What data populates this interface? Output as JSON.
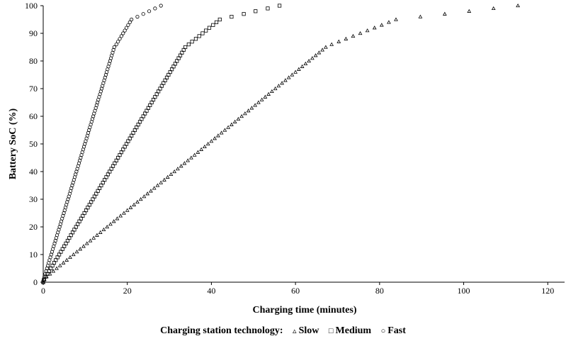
{
  "chart_data": {
    "type": "scatter",
    "xlabel": "Charging time (minutes)",
    "ylabel": "Battery SoC (%)",
    "xlim": [
      0,
      124
    ],
    "ylim": [
      0,
      100
    ],
    "xticks": [
      "0",
      "20",
      "40",
      "60",
      "80",
      "100",
      "120"
    ],
    "yticks": [
      "0",
      "10",
      "20",
      "30",
      "40",
      "50",
      "60",
      "70",
      "80",
      "90",
      "100"
    ],
    "legend": {
      "title": "Charging station technology:",
      "placement": "bottom-center",
      "entries": [
        {
          "name": "Slow",
          "marker": "triangle",
          "symbol": "▵"
        },
        {
          "name": "Medium",
          "marker": "square",
          "symbol": "□"
        },
        {
          "name": "Fast",
          "marker": "circle",
          "symbol": "○"
        }
      ]
    },
    "series": [
      {
        "name": "Slow",
        "marker": "triangle",
        "points": [
          [
            0,
            0
          ],
          [
            0.3,
            1
          ],
          [
            0.8,
            2
          ],
          [
            1.6,
            3
          ],
          [
            2.4,
            4
          ],
          [
            3.2,
            5
          ],
          [
            4,
            6
          ],
          [
            4.8,
            7
          ],
          [
            5.6,
            8
          ],
          [
            6.4,
            9
          ],
          [
            7.2,
            10
          ],
          [
            8,
            11
          ],
          [
            8.8,
            12
          ],
          [
            9.6,
            13
          ],
          [
            10.4,
            14
          ],
          [
            11.2,
            15
          ],
          [
            12,
            16
          ],
          [
            12.8,
            17
          ],
          [
            13.6,
            18
          ],
          [
            14.4,
            19
          ],
          [
            15.2,
            20
          ],
          [
            16,
            21
          ],
          [
            16.8,
            22
          ],
          [
            17.6,
            23
          ],
          [
            18.4,
            24
          ],
          [
            19.2,
            25
          ],
          [
            20,
            26
          ],
          [
            20.8,
            27
          ],
          [
            21.6,
            28
          ],
          [
            22.4,
            29
          ],
          [
            23.2,
            30
          ],
          [
            24,
            31
          ],
          [
            24.8,
            32
          ],
          [
            25.6,
            33
          ],
          [
            26.4,
            34
          ],
          [
            27.2,
            35
          ],
          [
            28,
            36
          ],
          [
            28.8,
            37
          ],
          [
            29.6,
            38
          ],
          [
            30.4,
            39
          ],
          [
            31.2,
            40
          ],
          [
            32,
            41
          ],
          [
            32.8,
            42
          ],
          [
            33.6,
            43
          ],
          [
            34.4,
            44
          ],
          [
            35.2,
            45
          ],
          [
            36,
            46
          ],
          [
            36.8,
            47
          ],
          [
            37.6,
            48
          ],
          [
            38.4,
            49
          ],
          [
            39.2,
            50
          ],
          [
            40,
            51
          ],
          [
            40.8,
            52
          ],
          [
            41.6,
            53
          ],
          [
            42.4,
            54
          ],
          [
            43.2,
            55
          ],
          [
            44,
            56
          ],
          [
            44.8,
            57
          ],
          [
            45.6,
            58
          ],
          [
            46.4,
            59
          ],
          [
            47.2,
            60
          ],
          [
            48,
            61
          ],
          [
            48.8,
            62
          ],
          [
            49.6,
            63
          ],
          [
            50.4,
            64
          ],
          [
            51.2,
            65
          ],
          [
            52,
            66
          ],
          [
            52.8,
            67
          ],
          [
            53.6,
            68
          ],
          [
            54.4,
            69
          ],
          [
            55.2,
            70
          ],
          [
            56,
            71
          ],
          [
            56.8,
            72
          ],
          [
            57.6,
            73
          ],
          [
            58.4,
            74
          ],
          [
            59.2,
            75
          ],
          [
            60,
            76
          ],
          [
            60.8,
            77
          ],
          [
            61.6,
            78
          ],
          [
            62.4,
            79
          ],
          [
            63.2,
            80
          ],
          [
            64,
            81
          ],
          [
            64.8,
            82
          ],
          [
            65.6,
            83
          ],
          [
            66.4,
            84
          ],
          [
            67.2,
            85
          ],
          [
            68.6,
            86
          ],
          [
            70.3,
            87
          ],
          [
            72,
            88
          ],
          [
            73.7,
            89
          ],
          [
            75.4,
            90
          ],
          [
            77.1,
            91
          ],
          [
            78.8,
            92
          ],
          [
            80.5,
            93
          ],
          [
            82.2,
            94
          ],
          [
            83.9,
            95
          ],
          [
            89.7,
            96
          ],
          [
            95.5,
            97
          ],
          [
            101.3,
            98
          ],
          [
            107.1,
            99
          ],
          [
            112.9,
            100
          ]
        ]
      },
      {
        "name": "Medium",
        "marker": "square",
        "points": [
          [
            0,
            0
          ],
          [
            0.2,
            1
          ],
          [
            0.6,
            2
          ],
          [
            1.0,
            3
          ],
          [
            1.4,
            4
          ],
          [
            1.8,
            5
          ],
          [
            2.2,
            6
          ],
          [
            2.6,
            7
          ],
          [
            3.0,
            8
          ],
          [
            3.4,
            9
          ],
          [
            3.8,
            10
          ],
          [
            4.2,
            11
          ],
          [
            4.6,
            12
          ],
          [
            5.0,
            13
          ],
          [
            5.4,
            14
          ],
          [
            5.8,
            15
          ],
          [
            6.2,
            16
          ],
          [
            6.6,
            17
          ],
          [
            7.0,
            18
          ],
          [
            7.4,
            19
          ],
          [
            7.8,
            20
          ],
          [
            8.2,
            21
          ],
          [
            8.6,
            22
          ],
          [
            9.0,
            23
          ],
          [
            9.4,
            24
          ],
          [
            9.8,
            25
          ],
          [
            10.2,
            26
          ],
          [
            10.6,
            27
          ],
          [
            11.0,
            28
          ],
          [
            11.4,
            29
          ],
          [
            11.8,
            30
          ],
          [
            12.2,
            31
          ],
          [
            12.6,
            32
          ],
          [
            13.0,
            33
          ],
          [
            13.4,
            34
          ],
          [
            13.8,
            35
          ],
          [
            14.2,
            36
          ],
          [
            14.6,
            37
          ],
          [
            15.0,
            38
          ],
          [
            15.4,
            39
          ],
          [
            15.8,
            40
          ],
          [
            16.2,
            41
          ],
          [
            16.6,
            42
          ],
          [
            17.0,
            43
          ],
          [
            17.4,
            44
          ],
          [
            17.8,
            45
          ],
          [
            18.2,
            46
          ],
          [
            18.6,
            47
          ],
          [
            19.0,
            48
          ],
          [
            19.4,
            49
          ],
          [
            19.8,
            50
          ],
          [
            20.2,
            51
          ],
          [
            20.6,
            52
          ],
          [
            21.0,
            53
          ],
          [
            21.4,
            54
          ],
          [
            21.8,
            55
          ],
          [
            22.2,
            56
          ],
          [
            22.6,
            57
          ],
          [
            23.0,
            58
          ],
          [
            23.4,
            59
          ],
          [
            23.8,
            60
          ],
          [
            24.2,
            61
          ],
          [
            24.6,
            62
          ],
          [
            25.0,
            63
          ],
          [
            25.4,
            64
          ],
          [
            25.8,
            65
          ],
          [
            26.2,
            66
          ],
          [
            26.6,
            67
          ],
          [
            27.0,
            68
          ],
          [
            27.4,
            69
          ],
          [
            27.8,
            70
          ],
          [
            28.2,
            71
          ],
          [
            28.6,
            72
          ],
          [
            29.0,
            73
          ],
          [
            29.4,
            74
          ],
          [
            29.8,
            75
          ],
          [
            30.2,
            76
          ],
          [
            30.6,
            77
          ],
          [
            31.0,
            78
          ],
          [
            31.4,
            79
          ],
          [
            31.8,
            80
          ],
          [
            32.2,
            81
          ],
          [
            32.6,
            82
          ],
          [
            33.0,
            83
          ],
          [
            33.4,
            84
          ],
          [
            33.8,
            85
          ],
          [
            34.6,
            86
          ],
          [
            35.4,
            87
          ],
          [
            36.3,
            88
          ],
          [
            37.1,
            89
          ],
          [
            37.9,
            90
          ],
          [
            38.7,
            91
          ],
          [
            39.5,
            92
          ],
          [
            40.4,
            93
          ],
          [
            41.2,
            94
          ],
          [
            42.0,
            95
          ],
          [
            44.8,
            96
          ],
          [
            47.7,
            97
          ],
          [
            50.5,
            98
          ],
          [
            53.4,
            99
          ],
          [
            56.2,
            100
          ]
        ]
      },
      {
        "name": "Fast",
        "marker": "circle",
        "points": [
          [
            0,
            0
          ],
          [
            0.1,
            1
          ],
          [
            0.3,
            2
          ],
          [
            0.5,
            3
          ],
          [
            0.7,
            4
          ],
          [
            0.9,
            5
          ],
          [
            1.1,
            6
          ],
          [
            1.3,
            7
          ],
          [
            1.5,
            8
          ],
          [
            1.7,
            9
          ],
          [
            1.9,
            10
          ],
          [
            2.1,
            11
          ],
          [
            2.3,
            12
          ],
          [
            2.5,
            13
          ],
          [
            2.7,
            14
          ],
          [
            2.9,
            15
          ],
          [
            3.1,
            16
          ],
          [
            3.3,
            17
          ],
          [
            3.5,
            18
          ],
          [
            3.7,
            19
          ],
          [
            3.9,
            20
          ],
          [
            4.1,
            21
          ],
          [
            4.3,
            22
          ],
          [
            4.5,
            23
          ],
          [
            4.7,
            24
          ],
          [
            4.9,
            25
          ],
          [
            5.1,
            26
          ],
          [
            5.3,
            27
          ],
          [
            5.5,
            28
          ],
          [
            5.7,
            29
          ],
          [
            5.9,
            30
          ],
          [
            6.1,
            31
          ],
          [
            6.3,
            32
          ],
          [
            6.5,
            33
          ],
          [
            6.7,
            34
          ],
          [
            6.9,
            35
          ],
          [
            7.1,
            36
          ],
          [
            7.3,
            37
          ],
          [
            7.5,
            38
          ],
          [
            7.7,
            39
          ],
          [
            7.9,
            40
          ],
          [
            8.1,
            41
          ],
          [
            8.3,
            42
          ],
          [
            8.5,
            43
          ],
          [
            8.7,
            44
          ],
          [
            8.9,
            45
          ],
          [
            9.1,
            46
          ],
          [
            9.3,
            47
          ],
          [
            9.5,
            48
          ],
          [
            9.7,
            49
          ],
          [
            9.9,
            50
          ],
          [
            10.1,
            51
          ],
          [
            10.3,
            52
          ],
          [
            10.5,
            53
          ],
          [
            10.7,
            54
          ],
          [
            10.9,
            55
          ],
          [
            11.1,
            56
          ],
          [
            11.3,
            57
          ],
          [
            11.5,
            58
          ],
          [
            11.7,
            59
          ],
          [
            11.9,
            60
          ],
          [
            12.1,
            61
          ],
          [
            12.3,
            62
          ],
          [
            12.5,
            63
          ],
          [
            12.7,
            64
          ],
          [
            12.9,
            65
          ],
          [
            13.1,
            66
          ],
          [
            13.3,
            67
          ],
          [
            13.5,
            68
          ],
          [
            13.7,
            69
          ],
          [
            13.9,
            70
          ],
          [
            14.1,
            71
          ],
          [
            14.3,
            72
          ],
          [
            14.5,
            73
          ],
          [
            14.7,
            74
          ],
          [
            14.9,
            75
          ],
          [
            15.1,
            76
          ],
          [
            15.3,
            77
          ],
          [
            15.5,
            78
          ],
          [
            15.7,
            79
          ],
          [
            15.9,
            80
          ],
          [
            16.1,
            81
          ],
          [
            16.3,
            82
          ],
          [
            16.5,
            83
          ],
          [
            16.7,
            84
          ],
          [
            16.9,
            85
          ],
          [
            17.4,
            86
          ],
          [
            17.8,
            87
          ],
          [
            18.2,
            88
          ],
          [
            18.6,
            89
          ],
          [
            19.0,
            90
          ],
          [
            19.4,
            91
          ],
          [
            19.8,
            92
          ],
          [
            20.2,
            93
          ],
          [
            20.6,
            94
          ],
          [
            21.0,
            95
          ],
          [
            22.4,
            96
          ],
          [
            23.8,
            97
          ],
          [
            25.2,
            98
          ],
          [
            26.6,
            99
          ],
          [
            28.0,
            100
          ]
        ]
      }
    ]
  }
}
